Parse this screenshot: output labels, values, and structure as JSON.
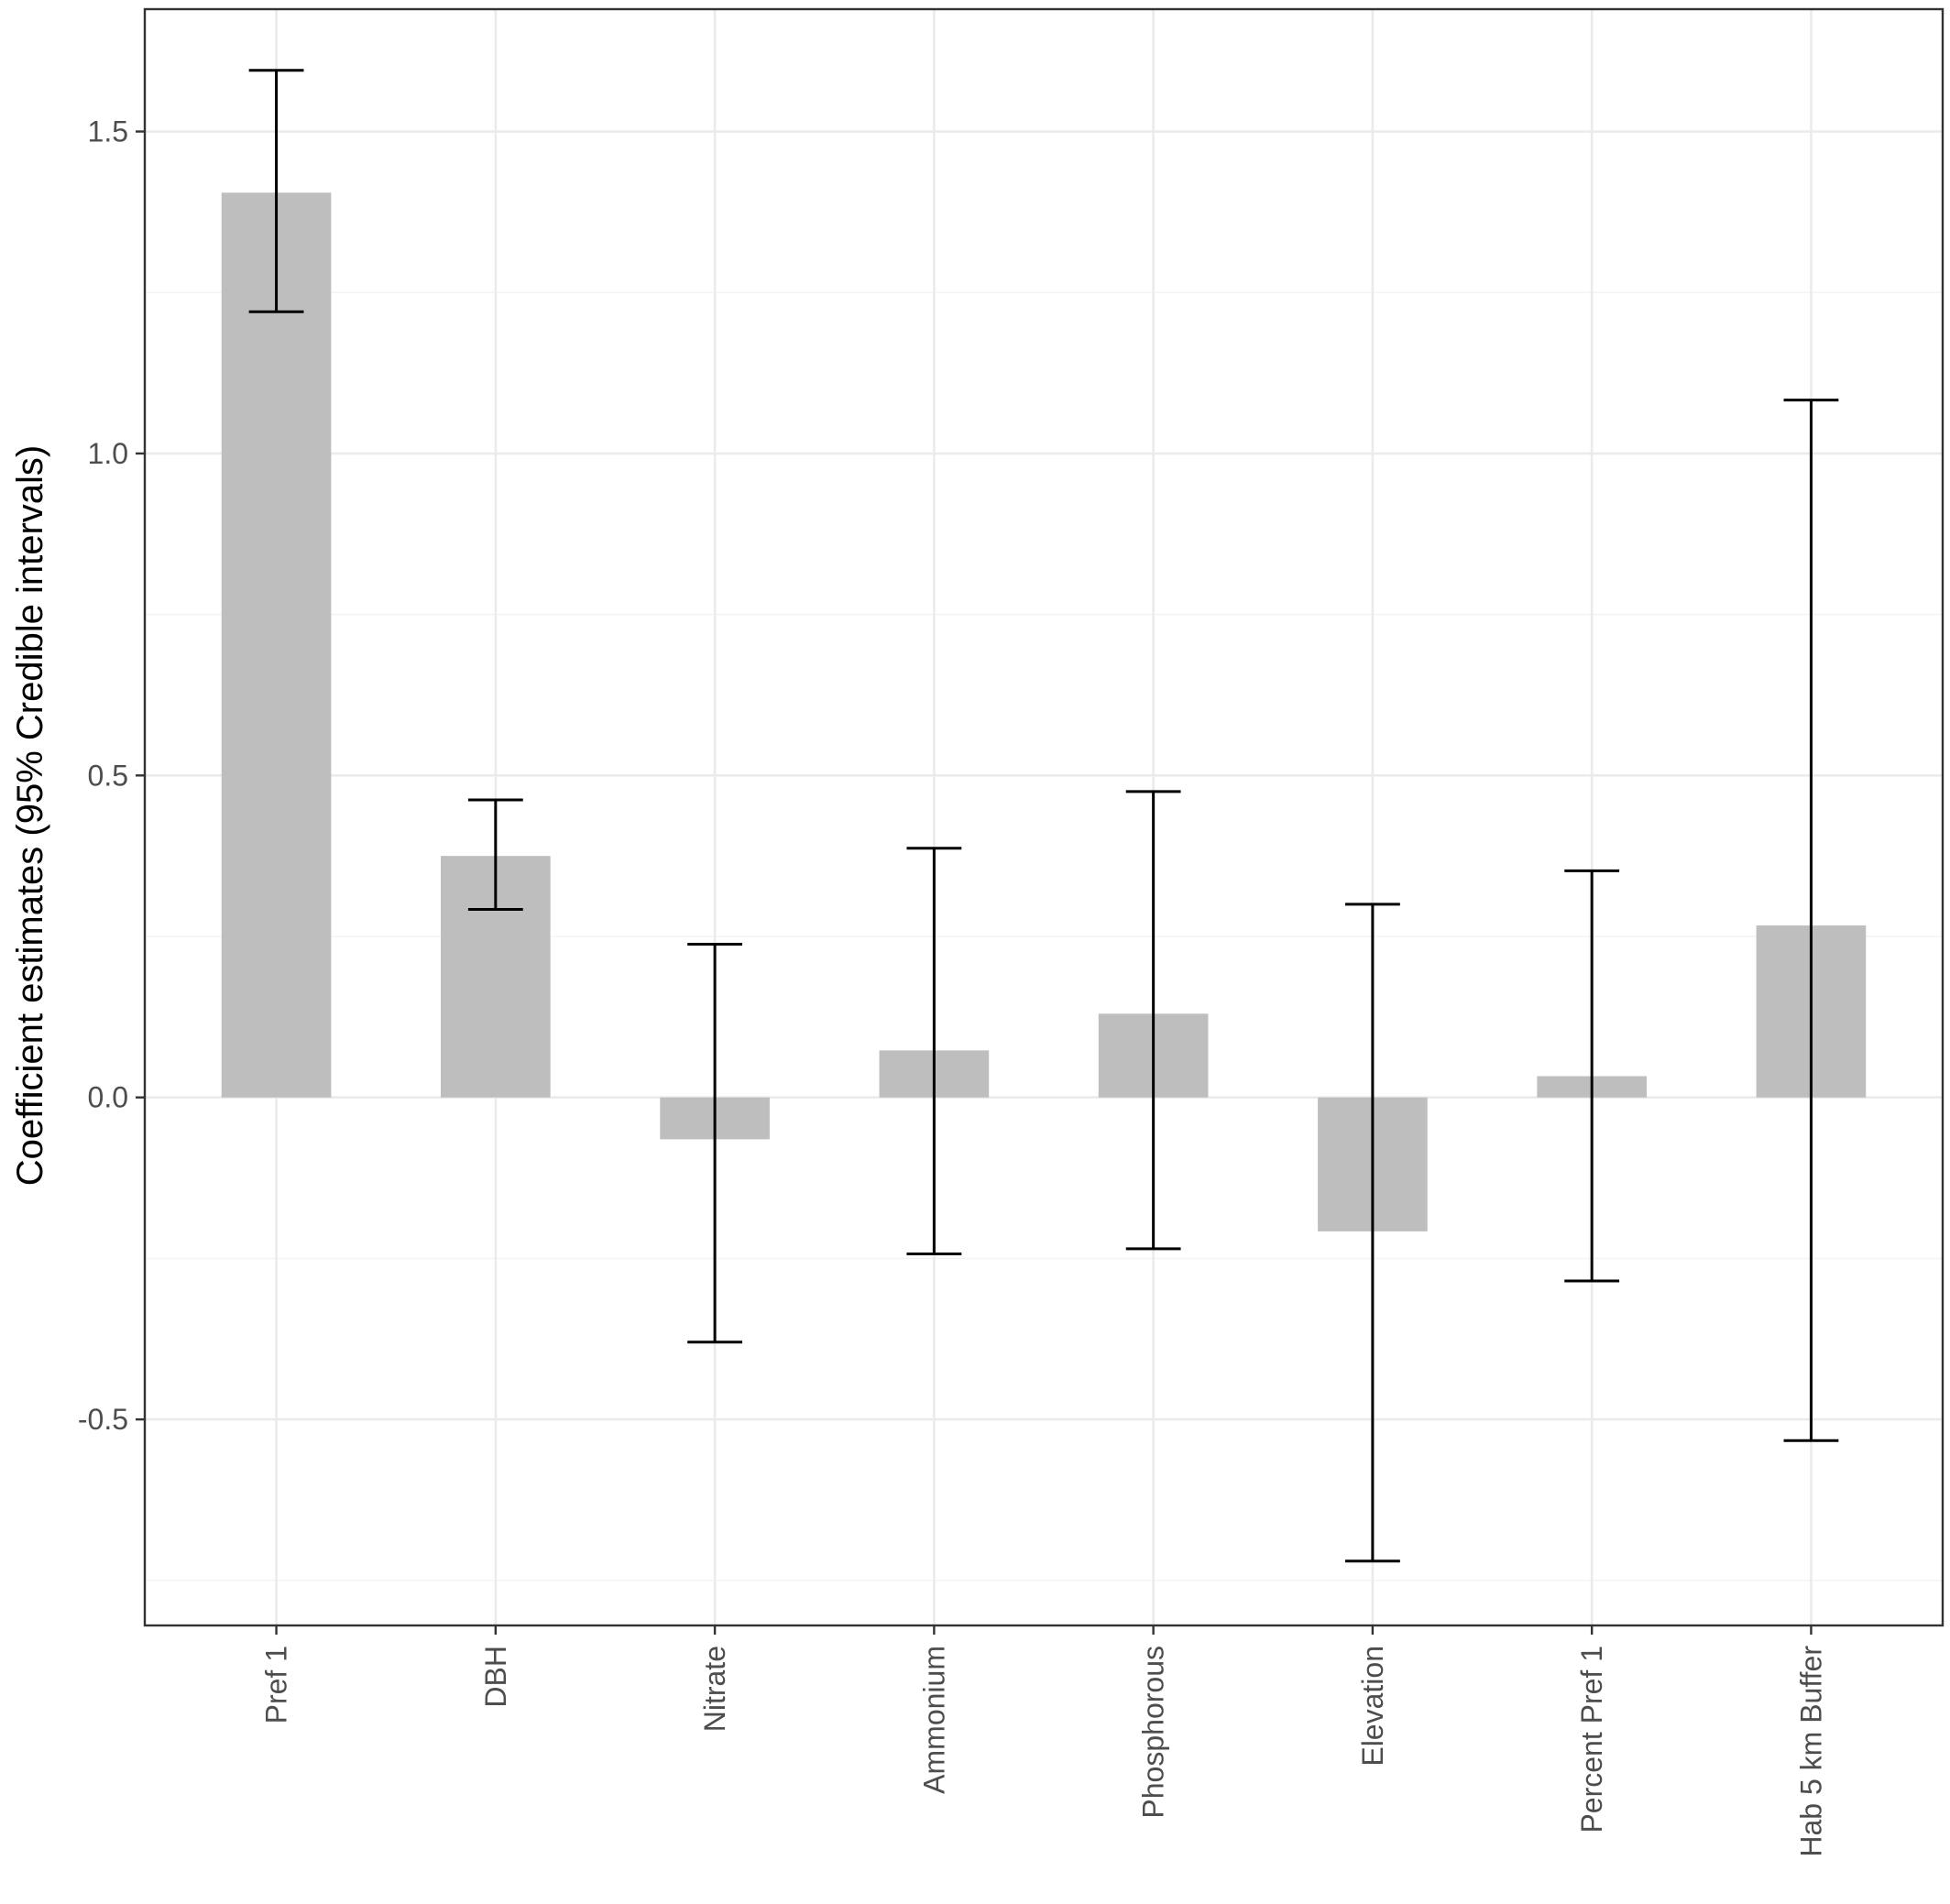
{
  "chart_data": {
    "type": "bar",
    "title": "",
    "xlabel": "",
    "ylabel": "Coefficient estimates (95% Credible intervals)",
    "categories": [
      "Pref 1",
      "DBH",
      "Nitrate",
      "Ammonium",
      "Phosphorous",
      "Elevation",
      "Percent Pref 1",
      "Hab 5 km Buffer"
    ],
    "values": [
      1.405,
      0.375,
      -0.065,
      0.073,
      0.13,
      -0.208,
      0.033,
      0.267
    ],
    "lower": [
      1.22,
      0.292,
      -0.38,
      -0.243,
      -0.235,
      -0.72,
      -0.285,
      -0.533
    ],
    "upper": [
      1.595,
      0.462,
      0.238,
      0.387,
      0.475,
      0.3,
      0.352,
      1.083
    ],
    "ylim": [
      -0.82,
      1.69
    ],
    "yticks": [
      -0.5,
      0.0,
      0.5,
      1.0,
      1.5
    ],
    "ytick_labels": [
      "-0.5",
      "0.0",
      "0.5",
      "1.0",
      "1.5"
    ],
    "grid": true,
    "colors": {
      "bar": "#bebebe",
      "error_bar": "#000000",
      "grid": "#ebebeb"
    }
  }
}
